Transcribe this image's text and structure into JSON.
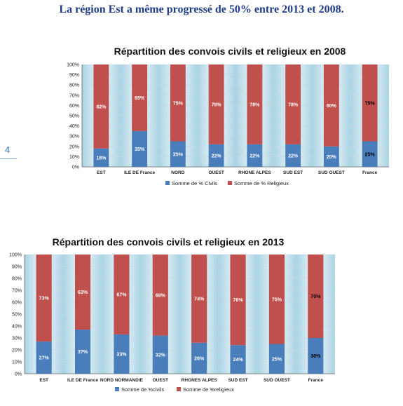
{
  "headline": "La région Est a même progressé de 50% entre 2013 et 2008.",
  "page_number": "4",
  "colors": {
    "civils": "#4a7ebb",
    "religieux": "#c0504d",
    "band_dark": "#a9d3e3",
    "band_light": "#f4fafc",
    "label_light": "#ffffff",
    "label_dark": "#000000"
  },
  "chart_data": [
    {
      "type": "bar",
      "stacked": "percent",
      "title": "Répartition des convois civils et religieux en 2008",
      "categories": [
        "EST",
        "ILE DE France",
        "NORD",
        "OUEST",
        "RHONE ALPES",
        "SUD EST",
        "SUD OUEST",
        "France"
      ],
      "series": [
        {
          "name": "Somme de % Civils",
          "values": [
            18,
            35,
            25,
            22,
            22,
            22,
            20,
            25
          ],
          "labels": [
            "18%",
            "35%",
            "25%",
            "22%",
            "22%",
            "22%",
            "20%",
            "25%"
          ]
        },
        {
          "name": "Somme de % Religieux",
          "values": [
            82,
            65,
            75,
            78,
            78,
            78,
            80,
            75
          ],
          "labels": [
            "82%",
            "65%",
            "75%",
            "78%",
            "78%",
            "78%",
            "80%",
            "75%"
          ]
        }
      ],
      "y_ticks": [
        "0%",
        "10%",
        "20%",
        "30%",
        "40%",
        "50%",
        "60%",
        "70%",
        "80%",
        "90%",
        "100%"
      ],
      "ylim": [
        0,
        100
      ],
      "legend_position": "bottom",
      "dark_label_category": "France"
    },
    {
      "type": "bar",
      "stacked": "percent",
      "title": "Répartition des convois civils et religieux en 2013",
      "categories": [
        "EST",
        "ILE DE France",
        "NORD NORMANDIE",
        "OUEST",
        "RHONES ALPES",
        "SUD EST",
        "SUD OUEST",
        "France"
      ],
      "series": [
        {
          "name": "Somme de %civils",
          "values": [
            27,
            37,
            33,
            32,
            26,
            24,
            25,
            30
          ],
          "labels": [
            "27%",
            "37%",
            "33%",
            "32%",
            "26%",
            "24%",
            "25%",
            "30%"
          ]
        },
        {
          "name": "Somme de %religieux",
          "values": [
            73,
            63,
            67,
            68,
            74,
            76,
            75,
            70
          ],
          "labels": [
            "73%",
            "63%",
            "67%",
            "68%",
            "74%",
            "76%",
            "75%",
            "70%"
          ]
        }
      ],
      "y_ticks": [
        "0%",
        "10%",
        "20%",
        "30%",
        "40%",
        "50%",
        "60%",
        "70%",
        "80%",
        "90%",
        "100%"
      ],
      "ylim": [
        0,
        100
      ],
      "legend_position": "bottom",
      "dark_label_category": "France"
    }
  ]
}
